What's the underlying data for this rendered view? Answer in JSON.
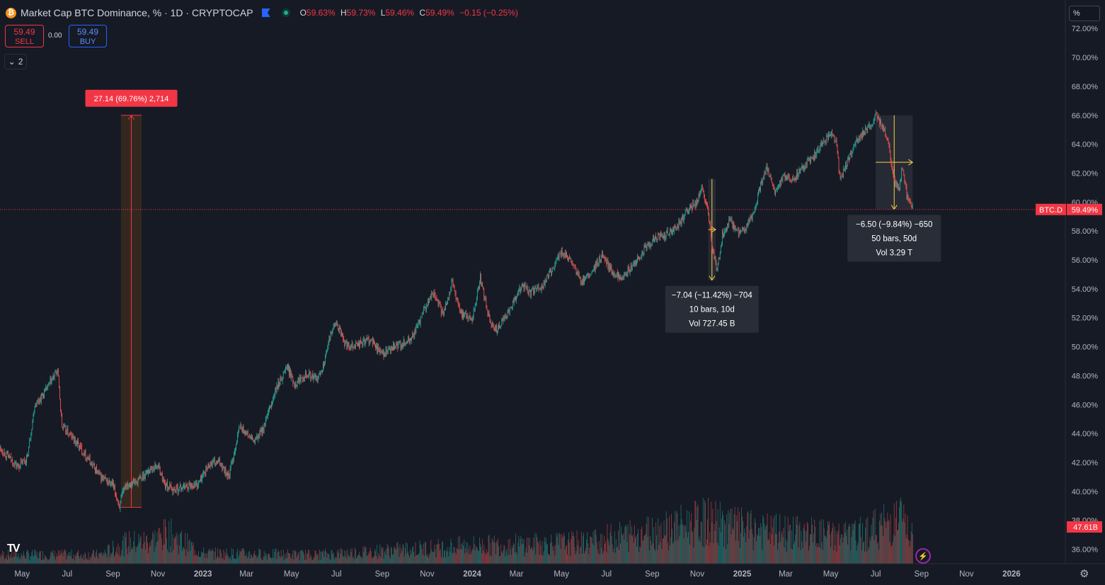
{
  "header": {
    "title": "Market Cap BTC Dominance, % · 1D · CRYPTOCAP",
    "open_label": "O",
    "open": "59.63%",
    "high_label": "H",
    "high": "59.73%",
    "low_label": "L",
    "low": "59.46%",
    "close_label": "C",
    "close": "59.49%",
    "change": "−0.15 (−0.25%)",
    "icons": [
      "bitcoin-icon",
      "flag-icon",
      "live-dot-icon"
    ]
  },
  "trade": {
    "sell_price": "59.49",
    "sell_label": "SELL",
    "spread": "0.00",
    "buy_price": "59.49",
    "buy_label": "BUY"
  },
  "indicators_toggle": {
    "count": "2"
  },
  "scale_button": "%",
  "colors": {
    "up": "#26a69a",
    "down": "#ef5350",
    "background": "#161a25",
    "price_line": "#f23645",
    "measure_up_box": "#5d4037"
  },
  "chart_data": {
    "type": "candlestick",
    "symbol": "BTC.D",
    "last_value": 59.49,
    "last_value_label": "59.49%",
    "volume_last_label": "47.61B",
    "y_axis": {
      "ticks": [
        "36.00%",
        "38.00%",
        "40.00%",
        "42.00%",
        "44.00%",
        "46.00%",
        "48.00%",
        "50.00%",
        "52.00%",
        "54.00%",
        "56.00%",
        "58.00%",
        "60.00%",
        "62.00%",
        "64.00%",
        "66.00%",
        "68.00%",
        "70.00%",
        "72.00%"
      ],
      "range": [
        35.0,
        72.5
      ]
    },
    "x_axis": {
      "ticks": [
        "May",
        "Jul",
        "Sep",
        "Nov",
        "2023",
        "Mar",
        "May",
        "Jul",
        "Sep",
        "Nov",
        "2024",
        "Mar",
        "May",
        "Jul",
        "Sep",
        "Nov",
        "2025",
        "Mar",
        "May",
        "Jul",
        "Sep",
        "Nov",
        "2026"
      ],
      "range": [
        "2022-04-01",
        "2026-03-15"
      ]
    },
    "series_path": [
      [
        "2022-04-01",
        43.0
      ],
      [
        "2022-04-25",
        41.7
      ],
      [
        "2022-05-08",
        42.3
      ],
      [
        "2022-05-18",
        46.0
      ],
      [
        "2022-05-30",
        46.7
      ],
      [
        "2022-06-18",
        48.4
      ],
      [
        "2022-06-24",
        44.5
      ],
      [
        "2022-07-10",
        43.6
      ],
      [
        "2022-07-25",
        42.6
      ],
      [
        "2022-08-15",
        41.0
      ],
      [
        "2022-09-01",
        40.4
      ],
      [
        "2022-09-10",
        39.0
      ],
      [
        "2022-09-18",
        40.5
      ],
      [
        "2022-10-05",
        40.7
      ],
      [
        "2022-10-20",
        41.5
      ],
      [
        "2022-11-01",
        41.8
      ],
      [
        "2022-11-10",
        40.5
      ],
      [
        "2022-11-22",
        40.1
      ],
      [
        "2022-12-10",
        40.4
      ],
      [
        "2022-12-25",
        40.5
      ],
      [
        "2023-01-10",
        41.9
      ],
      [
        "2023-01-25",
        42.0
      ],
      [
        "2023-02-05",
        41.0
      ],
      [
        "2023-02-20",
        44.5
      ],
      [
        "2023-03-01",
        44.0
      ],
      [
        "2023-03-12",
        43.4
      ],
      [
        "2023-03-25",
        44.5
      ],
      [
        "2023-04-10",
        47.0
      ],
      [
        "2023-04-25",
        48.7
      ],
      [
        "2023-05-05",
        47.4
      ],
      [
        "2023-05-20",
        48.2
      ],
      [
        "2023-06-05",
        47.7
      ],
      [
        "2023-06-15",
        49.0
      ],
      [
        "2023-06-25",
        51.3
      ],
      [
        "2023-07-01",
        51.6
      ],
      [
        "2023-07-14",
        50.1
      ],
      [
        "2023-08-01",
        50.2
      ],
      [
        "2023-08-15",
        50.5
      ],
      [
        "2023-09-01",
        49.5
      ],
      [
        "2023-09-20",
        50.0
      ],
      [
        "2023-10-10",
        50.5
      ],
      [
        "2023-10-20",
        51.5
      ],
      [
        "2023-10-28",
        52.5
      ],
      [
        "2023-11-10",
        53.8
      ],
      [
        "2023-11-22",
        52.2
      ],
      [
        "2023-12-05",
        54.5
      ],
      [
        "2023-12-15",
        52.4
      ],
      [
        "2024-01-01",
        51.9
      ],
      [
        "2024-01-12",
        54.8
      ],
      [
        "2024-01-25",
        51.6
      ],
      [
        "2024-02-05",
        51.2
      ],
      [
        "2024-02-25",
        53.0
      ],
      [
        "2024-03-10",
        54.3
      ],
      [
        "2024-03-20",
        53.7
      ],
      [
        "2024-04-05",
        54.2
      ],
      [
        "2024-04-20",
        55.5
      ],
      [
        "2024-05-01",
        56.6
      ],
      [
        "2024-05-15",
        55.8
      ],
      [
        "2024-05-28",
        54.4
      ],
      [
        "2024-06-10",
        55.0
      ],
      [
        "2024-06-25",
        56.3
      ],
      [
        "2024-07-08",
        55.2
      ],
      [
        "2024-07-20",
        54.8
      ],
      [
        "2024-08-05",
        55.5
      ],
      [
        "2024-08-20",
        56.6
      ],
      [
        "2024-09-05",
        57.5
      ],
      [
        "2024-09-20",
        57.8
      ],
      [
        "2024-10-05",
        58.3
      ],
      [
        "2024-10-20",
        59.5
      ],
      [
        "2024-11-01",
        60.0
      ],
      [
        "2024-11-08",
        61.1
      ],
      [
        "2024-11-15",
        59.5
      ],
      [
        "2024-11-22",
        56.7
      ],
      [
        "2024-11-28",
        55.2
      ],
      [
        "2024-12-05",
        57.7
      ],
      [
        "2024-12-15",
        58.8
      ],
      [
        "2024-12-25",
        57.8
      ],
      [
        "2025-01-05",
        58.0
      ],
      [
        "2025-01-18",
        59.5
      ],
      [
        "2025-01-25",
        61.0
      ],
      [
        "2025-02-03",
        62.5
      ],
      [
        "2025-02-15",
        60.5
      ],
      [
        "2025-02-25",
        61.8
      ],
      [
        "2025-03-10",
        61.5
      ],
      [
        "2025-03-25",
        62.5
      ],
      [
        "2025-04-05",
        63.0
      ],
      [
        "2025-04-20",
        64.0
      ],
      [
        "2025-05-01",
        64.8
      ],
      [
        "2025-05-08",
        64.2
      ],
      [
        "2025-05-14",
        61.5
      ],
      [
        "2025-05-25",
        63.0
      ],
      [
        "2025-06-10",
        64.6
      ],
      [
        "2025-06-25",
        65.3
      ],
      [
        "2025-07-01",
        66.0
      ],
      [
        "2025-07-10",
        65.2
      ],
      [
        "2025-07-18",
        64.0
      ],
      [
        "2025-07-25",
        61.5
      ],
      [
        "2025-08-01",
        60.8
      ],
      [
        "2025-08-06",
        62.3
      ],
      [
        "2025-08-12",
        60.5
      ],
      [
        "2025-08-20",
        59.49
      ]
    ],
    "volume_range": [
      0,
      100
    ],
    "volume_profile": [
      [
        "2022-04-01",
        6
      ],
      [
        "2022-08-15",
        6
      ],
      [
        "2022-09-20",
        14
      ],
      [
        "2022-10-20",
        15
      ],
      [
        "2022-11-15",
        20
      ],
      [
        "2023-01-01",
        7
      ],
      [
        "2023-06-01",
        6
      ],
      [
        "2024-01-01",
        12
      ],
      [
        "2024-06-01",
        14
      ],
      [
        "2024-11-15",
        28
      ],
      [
        "2025-01-15",
        22
      ],
      [
        "2025-06-01",
        18
      ],
      [
        "2025-08-05",
        30
      ],
      [
        "2025-08-20",
        16
      ]
    ],
    "measures": [
      {
        "label": "27.14 (69.76%) 2,714",
        "from": [
          "2022-09-12",
          38.9
        ],
        "to": [
          "2022-10-10",
          66.0
        ],
        "direction": "up"
      },
      {
        "label_lines": [
          "−7.04 (−11.42%) −704",
          "10 bars, 10d",
          "Vol 727.45 B"
        ],
        "from": [
          "2024-11-16",
          61.6
        ],
        "to": [
          "2024-11-26",
          54.6
        ],
        "direction": "down"
      },
      {
        "label_lines": [
          "−6.50 (−9.84%) −650",
          "50 bars, 50d",
          "Vol 3.29 T"
        ],
        "from": [
          "2025-07-01",
          66.0
        ],
        "to": [
          "2025-08-20",
          59.5
        ],
        "direction": "down"
      }
    ]
  }
}
